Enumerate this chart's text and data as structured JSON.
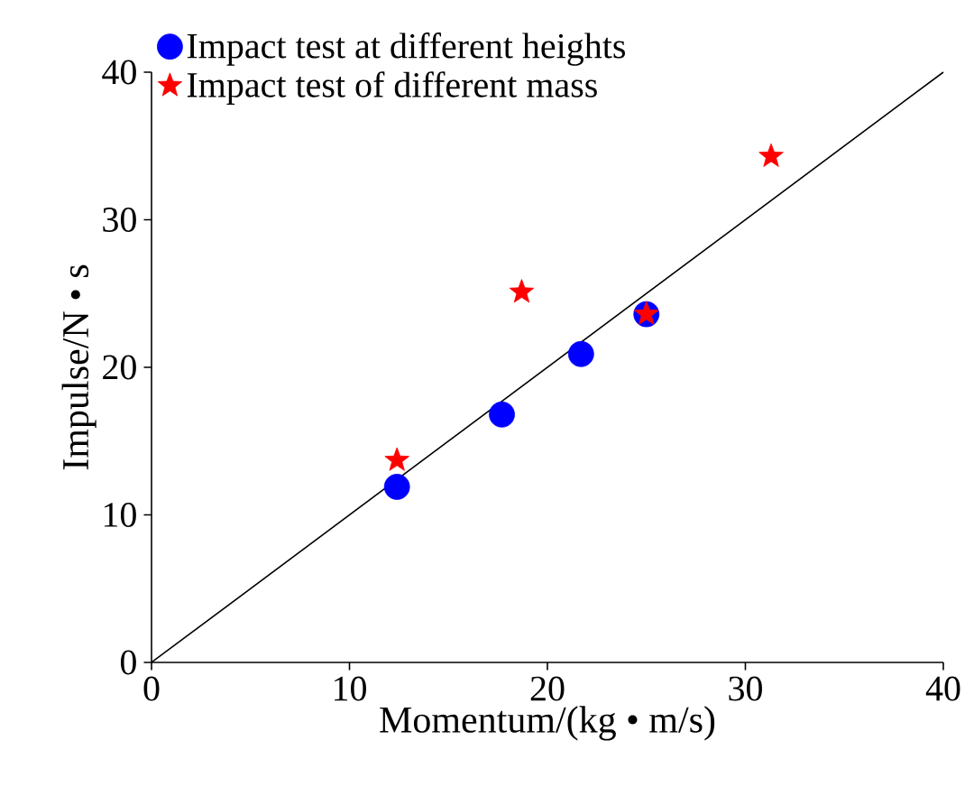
{
  "chart_data": {
    "type": "scatter",
    "xlabel": "Momentum/(kg • m/s)",
    "ylabel": "Impulse/N • s",
    "xlim": [
      0,
      40
    ],
    "ylim": [
      0,
      40
    ],
    "xticks": [
      0,
      10,
      20,
      30,
      40
    ],
    "yticks": [
      0,
      10,
      20,
      30,
      40
    ],
    "legend": "top left",
    "grid": false,
    "series": [
      {
        "name": "Impact test at different heights",
        "marker": "circle",
        "color": "#0000ff",
        "x": [
          12.4,
          17.7,
          21.7,
          25.0
        ],
        "values": [
          11.9,
          16.8,
          20.9,
          23.6
        ]
      },
      {
        "name": "Impact test of different mass",
        "marker": "star",
        "color": "#ff0000",
        "x": [
          12.4,
          18.7,
          25.0,
          31.3
        ],
        "values": [
          13.7,
          25.1,
          23.6,
          34.3
        ]
      },
      {
        "type": "line",
        "marker": "none",
        "color": "#000000",
        "x": [
          0,
          40
        ],
        "values": [
          0,
          40
        ]
      }
    ]
  }
}
